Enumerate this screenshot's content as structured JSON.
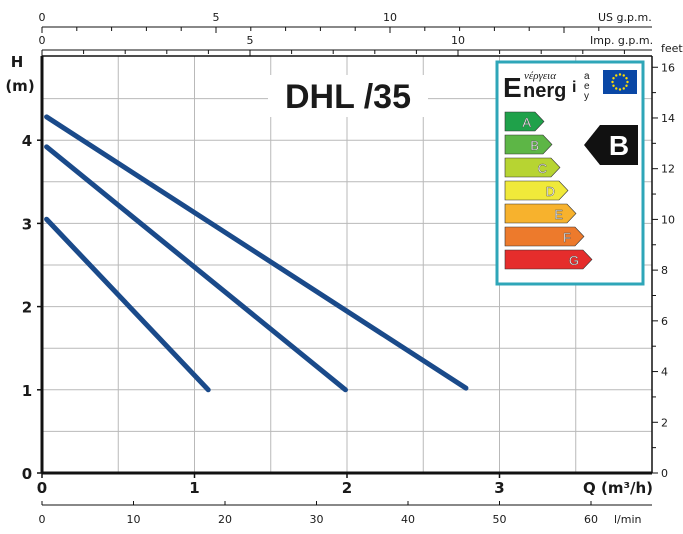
{
  "chart_data": {
    "type": "line",
    "title": "DHL /35",
    "xlabel": "Q (m³/h)",
    "ylabel_main": "H",
    "ylabel_unit": "(m)",
    "x_range": [
      0,
      4
    ],
    "y_range": [
      0,
      5
    ],
    "x_ticks": [
      "0",
      "1",
      "2",
      "3"
    ],
    "y_ticks": [
      "0",
      "1",
      "2",
      "3",
      "4"
    ],
    "top_axis_us": {
      "label": "US g.p.m.",
      "ticks": [
        "0",
        "5",
        "10"
      ]
    },
    "top_axis_imp": {
      "label": "Imp. g.p.m.",
      "ticks": [
        "0",
        "5",
        "10"
      ]
    },
    "bottom_axis_lmin": {
      "label": "l/min",
      "ticks": [
        "0",
        "10",
        "20",
        "30",
        "40",
        "50",
        "60"
      ]
    },
    "right_axis_feet": {
      "label": "feet",
      "ticks": [
        "0",
        "2",
        "4",
        "6",
        "8",
        "10",
        "12",
        "14",
        "16"
      ]
    },
    "grid": true,
    "series_color": "#1a4a8a",
    "series": [
      {
        "points": [
          [
            0.03,
            3.05
          ],
          [
            1.09,
            1.0
          ]
        ]
      },
      {
        "points": [
          [
            0.03,
            3.92
          ],
          [
            1.99,
            1.0
          ]
        ]
      },
      {
        "points": [
          [
            0.03,
            4.28
          ],
          [
            2.78,
            1.02
          ]
        ]
      }
    ],
    "energy_label": {
      "wordmark_letter": "E",
      "wordmark_rest": "nerg",
      "wordmark_greek": "νέργεια",
      "wordmark_small": [
        "i",
        "e",
        "a",
        "y"
      ],
      "classes": [
        {
          "letter": "A",
          "color": "#1fa14a"
        },
        {
          "letter": "B",
          "color": "#5db646"
        },
        {
          "letter": "C",
          "color": "#b7d432"
        },
        {
          "letter": "D",
          "color": "#f0e93a"
        },
        {
          "letter": "E",
          "color": "#f7b22d"
        },
        {
          "letter": "F",
          "color": "#ed7a2c"
        },
        {
          "letter": "G",
          "color": "#e52d2c"
        }
      ],
      "rating": "B",
      "border_color": "#2ea6b8"
    }
  }
}
